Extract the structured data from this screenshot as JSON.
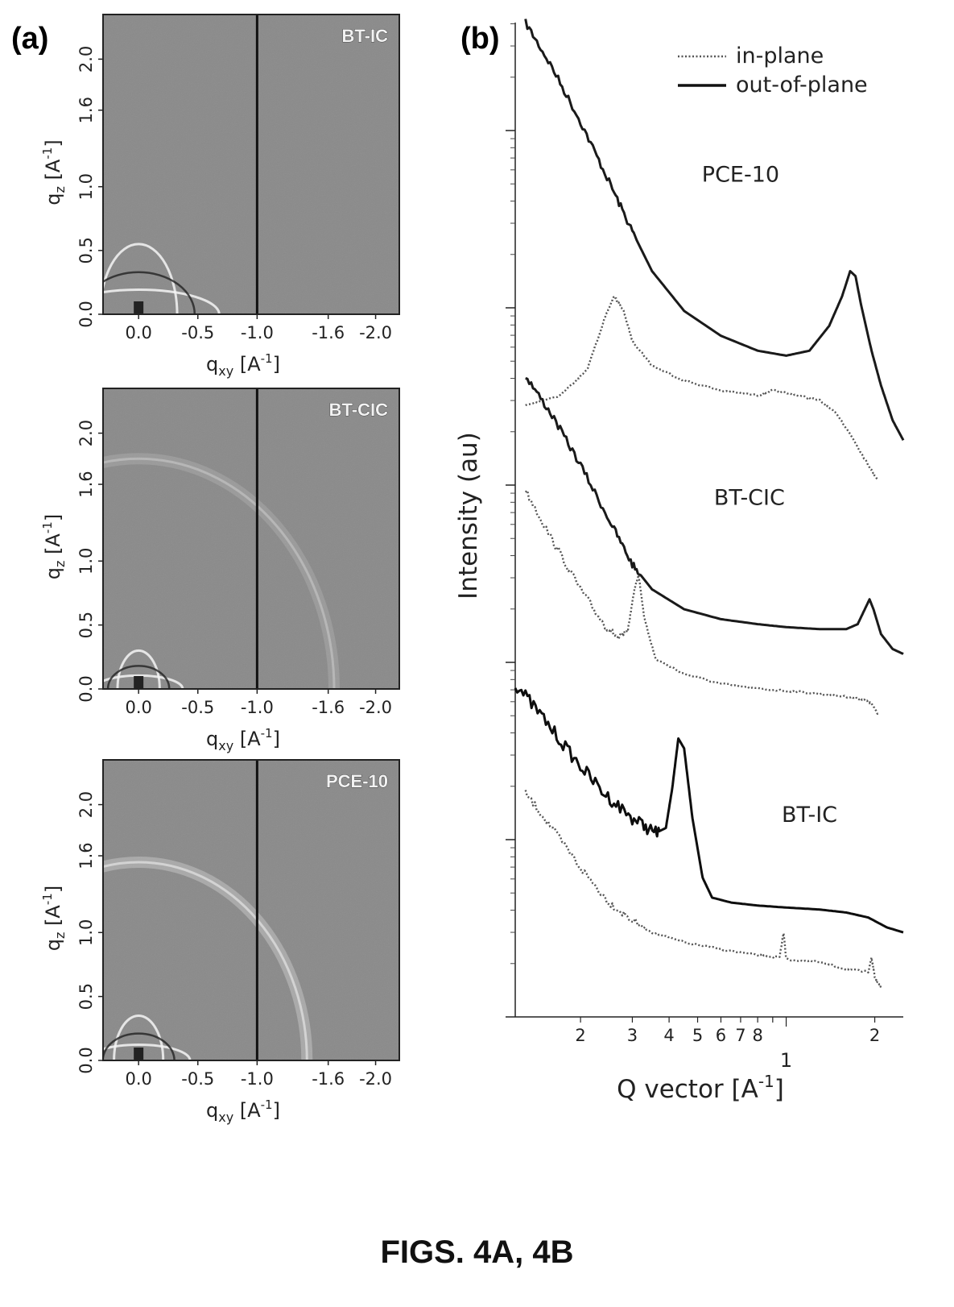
{
  "figure": {
    "panel_a_label": "(a)",
    "panel_b_label": "(b)",
    "caption": "FIGS. 4A, 4B"
  },
  "chart_data": [
    {
      "type": "heatmap",
      "panel": "(a)",
      "maps": [
        {
          "name": "BT-IC",
          "xlabel": "q",
          "xlabel_sub": "xy",
          "xlabel_unit": "[A",
          "xlabel_sup": "-1",
          "xlabel_close": "]",
          "ylabel": "q",
          "ylabel_sub": "z",
          "ylabel_unit": "[A",
          "ylabel_sup": "-1",
          "ylabel_close": "]",
          "x_ticks": [
            {
              "v": 0.0,
              "t": "0.0"
            },
            {
              "v": -0.5,
              "t": "-0.5"
            },
            {
              "v": -1.0,
              "t": "-1.0"
            },
            {
              "v": -1.6,
              "t": "-1.6"
            },
            {
              "v": -2.0,
              "t": "-2.0"
            }
          ],
          "y_ticks": [
            {
              "v": 0.0,
              "t": "0.0"
            },
            {
              "v": 0.5,
              "t": "0.5"
            },
            {
              "v": 1.0,
              "t": "1.0"
            },
            {
              "v": 1.6,
              "t": "1.6"
            },
            {
              "v": 2.0,
              "t": "2.0"
            }
          ],
          "rings": [
            {
              "q": 0.55,
              "intensity": "strong"
            }
          ]
        },
        {
          "name": "BT-CIC",
          "xlabel": "q",
          "xlabel_sub": "xy",
          "xlabel_unit": "[A",
          "xlabel_sup": "-1",
          "xlabel_close": "]",
          "ylabel": "q",
          "ylabel_sub": "z",
          "ylabel_unit": "[A",
          "ylabel_sup": "-1",
          "ylabel_close": "]",
          "x_ticks": [
            {
              "v": 0.0,
              "t": "0.0"
            },
            {
              "v": -0.5,
              "t": "-0.5"
            },
            {
              "v": -1.0,
              "t": "-1.0"
            },
            {
              "v": -1.6,
              "t": "-1.6"
            },
            {
              "v": -2.0,
              "t": "-2.0"
            }
          ],
          "y_ticks": [
            {
              "v": 0.0,
              "t": "0.0"
            },
            {
              "v": 0.5,
              "t": "0.5"
            },
            {
              "v": 1.0,
              "t": "1.0"
            },
            {
              "v": 1.6,
              "t": "1.6"
            },
            {
              "v": 2.0,
              "t": "2.0"
            }
          ],
          "rings": [
            {
              "q": 0.3,
              "intensity": "strong"
            },
            {
              "q": 1.8,
              "intensity": "faint"
            }
          ]
        },
        {
          "name": "PCE-10",
          "xlabel": "q",
          "xlabel_sub": "xy",
          "xlabel_unit": "[A",
          "xlabel_sup": "-1",
          "xlabel_close": "]",
          "ylabel": "q",
          "ylabel_sub": "z",
          "ylabel_unit": "[A",
          "ylabel_sup": "-1",
          "ylabel_close": "]",
          "x_ticks": [
            {
              "v": 0.0,
              "t": "0.0"
            },
            {
              "v": -0.5,
              "t": "-0.5"
            },
            {
              "v": -1.0,
              "t": "-1.0"
            },
            {
              "v": -1.6,
              "t": "-1.6"
            },
            {
              "v": -2.0,
              "t": "-2.0"
            }
          ],
          "y_ticks": [
            {
              "v": 0.0,
              "t": "0.0"
            },
            {
              "v": 0.5,
              "t": "0.5"
            },
            {
              "v": 1.0,
              "t": "1.0"
            },
            {
              "v": 1.6,
              "t": "1.6"
            },
            {
              "v": 2.0,
              "t": "2.0"
            }
          ],
          "rings": [
            {
              "q": 0.35,
              "intensity": "strong"
            },
            {
              "q": 1.55,
              "intensity": "medium"
            }
          ]
        }
      ],
      "x_range": [
        0.3,
        -2.2
      ],
      "y_range": [
        0.0,
        2.35
      ],
      "divider_at_qxy": -1.0
    },
    {
      "type": "line",
      "panel": "(b)",
      "xlabel": "Q vector [A",
      "xlabel_sup": "-1",
      "xlabel_close": "]",
      "ylabel": "Intensity (au)",
      "x_scale": "log",
      "x_range": [
        0.12,
        2.5
      ],
      "y_range": [
        0,
        1
      ],
      "x_tick_labels": [
        {
          "v": 0.2,
          "t": "2"
        },
        {
          "v": 0.3,
          "t": "3"
        },
        {
          "v": 0.4,
          "t": "4"
        },
        {
          "v": 0.5,
          "t": "5"
        },
        {
          "v": 0.6,
          "t": "6"
        },
        {
          "v": 0.7,
          "t": "7"
        },
        {
          "v": 0.8,
          "t": "8"
        },
        {
          "v": 2.0,
          "t": "2"
        }
      ],
      "x_decade_label": {
        "v": 1.0,
        "t": "1"
      },
      "legend": {
        "position": "top-right",
        "entries": [
          {
            "name": "in-plane",
            "style": "dotted"
          },
          {
            "name": "out-of-plane",
            "style": "solid"
          }
        ]
      },
      "sample_labels": [
        {
          "text": "PCE-10",
          "x": 0.7,
          "y": 0.84
        },
        {
          "text": "BT-CIC",
          "x": 0.75,
          "y": 0.515
        },
        {
          "text": "BT-IC",
          "x": 1.2,
          "y": 0.196
        }
      ],
      "series": [
        {
          "name": "PCE-10 out-of-plane",
          "style": "solid",
          "noisy_until": 0.31,
          "points": [
            [
              0.13,
              1.0
            ],
            [
              0.16,
              0.955
            ],
            [
              0.2,
              0.9
            ],
            [
              0.25,
              0.84
            ],
            [
              0.3,
              0.79
            ],
            [
              0.35,
              0.75
            ],
            [
              0.45,
              0.71
            ],
            [
              0.6,
              0.685
            ],
            [
              0.8,
              0.67
            ],
            [
              1.0,
              0.665
            ],
            [
              1.2,
              0.67
            ],
            [
              1.4,
              0.695
            ],
            [
              1.55,
              0.725
            ],
            [
              1.65,
              0.75
            ],
            [
              1.72,
              0.745
            ],
            [
              1.8,
              0.715
            ],
            [
              1.95,
              0.67
            ],
            [
              2.1,
              0.635
            ],
            [
              2.3,
              0.6
            ],
            [
              2.5,
              0.58
            ]
          ]
        },
        {
          "name": "PCE-10 in-plane",
          "style": "dotted",
          "points": [
            [
              0.13,
              0.615
            ],
            [
              0.17,
              0.625
            ],
            [
              0.21,
              0.65
            ],
            [
              0.24,
              0.7
            ],
            [
              0.26,
              0.725
            ],
            [
              0.28,
              0.71
            ],
            [
              0.3,
              0.68
            ],
            [
              0.35,
              0.655
            ],
            [
              0.45,
              0.64
            ],
            [
              0.6,
              0.63
            ],
            [
              0.8,
              0.625
            ],
            [
              0.9,
              0.63
            ],
            [
              1.1,
              0.625
            ],
            [
              1.3,
              0.62
            ],
            [
              1.5,
              0.605
            ],
            [
              1.7,
              0.58
            ],
            [
              1.9,
              0.555
            ],
            [
              2.05,
              0.54
            ]
          ]
        },
        {
          "name": "BT-CIC out-of-plane",
          "style": "solid",
          "noisy_until": 0.32,
          "points": [
            [
              0.13,
              0.645
            ],
            [
              0.16,
              0.605
            ],
            [
              0.2,
              0.555
            ],
            [
              0.25,
              0.5
            ],
            [
              0.3,
              0.455
            ],
            [
              0.35,
              0.43
            ],
            [
              0.45,
              0.41
            ],
            [
              0.6,
              0.4
            ],
            [
              0.8,
              0.395
            ],
            [
              1.0,
              0.392
            ],
            [
              1.3,
              0.39
            ],
            [
              1.6,
              0.39
            ],
            [
              1.75,
              0.395
            ],
            [
              1.85,
              0.41
            ],
            [
              1.92,
              0.42
            ],
            [
              1.98,
              0.41
            ],
            [
              2.1,
              0.385
            ],
            [
              2.3,
              0.37
            ],
            [
              2.5,
              0.365
            ]
          ]
        },
        {
          "name": "BT-CIC in-plane",
          "style": "dotted",
          "noisy_until": 0.28,
          "points": [
            [
              0.13,
              0.53
            ],
            [
              0.16,
              0.48
            ],
            [
              0.2,
              0.43
            ],
            [
              0.24,
              0.395
            ],
            [
              0.27,
              0.38
            ],
            [
              0.29,
              0.39
            ],
            [
              0.305,
              0.43
            ],
            [
              0.315,
              0.445
            ],
            [
              0.33,
              0.4
            ],
            [
              0.36,
              0.36
            ],
            [
              0.45,
              0.345
            ],
            [
              0.6,
              0.335
            ],
            [
              0.8,
              0.33
            ],
            [
              1.0,
              0.328
            ],
            [
              1.3,
              0.325
            ],
            [
              1.6,
              0.322
            ],
            [
              1.8,
              0.32
            ],
            [
              1.95,
              0.315
            ],
            [
              2.05,
              0.305
            ]
          ]
        },
        {
          "name": "BT-IC out-of-plane",
          "style": "solid",
          "noisy_until": 0.37,
          "noise_strength": "heavy",
          "points": [
            [
              0.12,
              0.335
            ],
            [
              0.15,
              0.3
            ],
            [
              0.19,
              0.26
            ],
            [
              0.24,
              0.225
            ],
            [
              0.3,
              0.2
            ],
            [
              0.36,
              0.185
            ],
            [
              0.39,
              0.19
            ],
            [
              0.41,
              0.23
            ],
            [
              0.43,
              0.28
            ],
            [
              0.45,
              0.27
            ],
            [
              0.48,
              0.2
            ],
            [
              0.52,
              0.14
            ],
            [
              0.56,
              0.12
            ],
            [
              0.65,
              0.115
            ],
            [
              0.8,
              0.112
            ],
            [
              1.0,
              0.11
            ],
            [
              1.3,
              0.108
            ],
            [
              1.6,
              0.105
            ],
            [
              1.9,
              0.1
            ],
            [
              2.2,
              0.09
            ],
            [
              2.5,
              0.085
            ]
          ]
        },
        {
          "name": "BT-IC in-plane",
          "style": "dotted",
          "noisy_until": 0.32,
          "points": [
            [
              0.13,
              0.225
            ],
            [
              0.16,
              0.19
            ],
            [
              0.2,
              0.15
            ],
            [
              0.25,
              0.115
            ],
            [
              0.3,
              0.097
            ],
            [
              0.35,
              0.085
            ],
            [
              0.45,
              0.075
            ],
            [
              0.6,
              0.068
            ],
            [
              0.8,
              0.062
            ],
            [
              0.95,
              0.06
            ],
            [
              0.98,
              0.085
            ],
            [
              1.0,
              0.058
            ],
            [
              1.3,
              0.055
            ],
            [
              1.6,
              0.048
            ],
            [
              1.9,
              0.045
            ],
            [
              1.95,
              0.06
            ],
            [
              2.0,
              0.04
            ],
            [
              2.1,
              0.03
            ]
          ]
        }
      ]
    }
  ]
}
